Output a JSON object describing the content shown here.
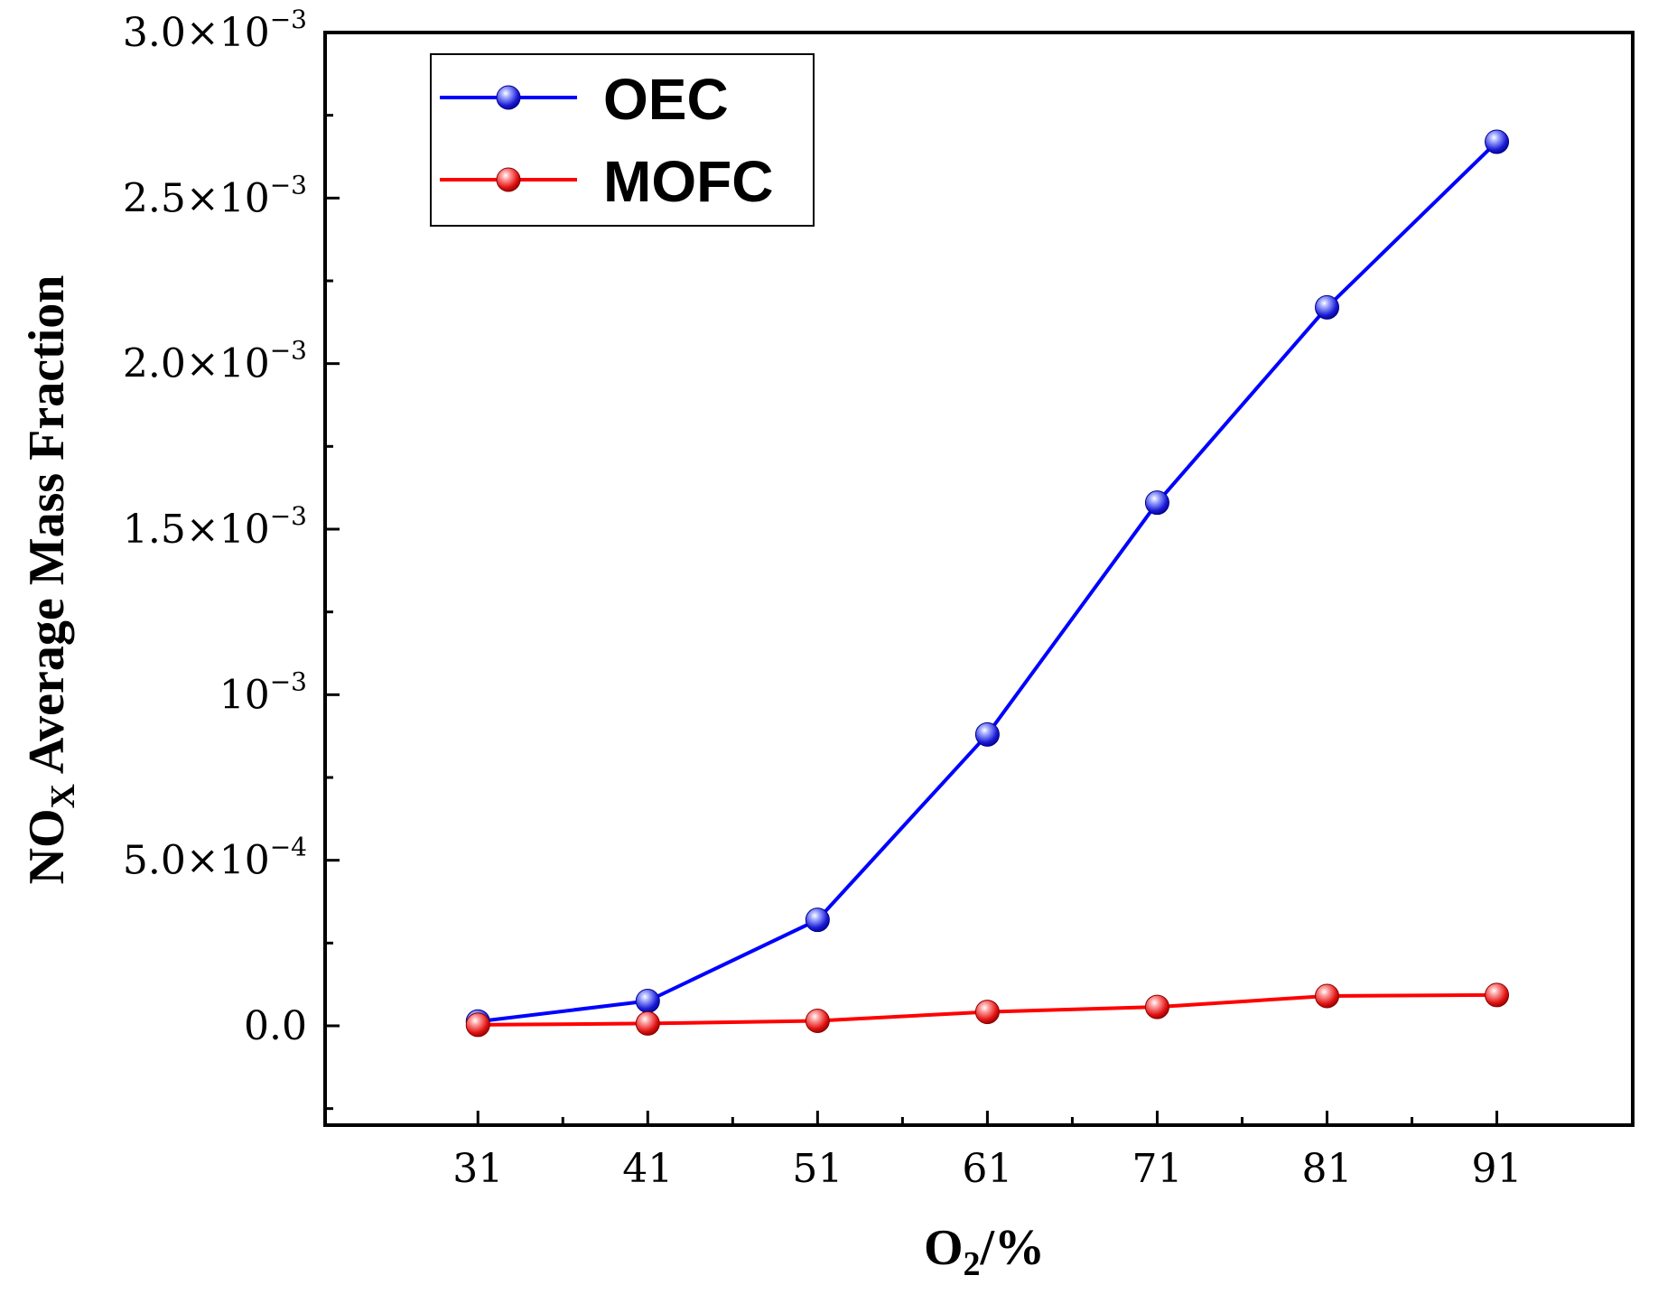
{
  "chart_data": {
    "type": "line",
    "title": "",
    "xlabel": {
      "main": "O",
      "sub": "2",
      "tail": "/%"
    },
    "ylabel": {
      "main": "NO",
      "sub": "X",
      "tail": " Average Mass Fraction"
    },
    "x": [
      31,
      41,
      51,
      61,
      71,
      81,
      91
    ],
    "xlim": [
      22,
      99
    ],
    "ylim": [
      -0.0003,
      0.003
    ],
    "xticks": [
      {
        "value": 31,
        "label": "31"
      },
      {
        "value": 41,
        "label": "41"
      },
      {
        "value": 51,
        "label": "51"
      },
      {
        "value": 61,
        "label": "61"
      },
      {
        "value": 71,
        "label": "71"
      },
      {
        "value": 81,
        "label": "81"
      },
      {
        "value": 91,
        "label": "91"
      }
    ],
    "yticks": [
      {
        "value": 0,
        "mant": "0.0",
        "exp": ""
      },
      {
        "value": 0.0005,
        "mant": "5.0×10",
        "exp": "−4"
      },
      {
        "value": 0.001,
        "mant": "10",
        "exp": "−3"
      },
      {
        "value": 0.0015,
        "mant": "1.5×10",
        "exp": "−3"
      },
      {
        "value": 0.002,
        "mant": "2.0×10",
        "exp": "−3"
      },
      {
        "value": 0.0025,
        "mant": "2.5×10",
        "exp": "−3"
      },
      {
        "value": 0.003,
        "mant": "3.0×10",
        "exp": "−3"
      }
    ],
    "legend_position": "top-left",
    "series": [
      {
        "name": "OEC",
        "color": "#0000ff",
        "values": [
          1.3e-05,
          7.5e-05,
          0.00032,
          0.00088,
          0.00158,
          0.00217,
          0.00267
        ]
      },
      {
        "name": "MOFC",
        "color": "#ff0000",
        "values": [
          3e-06,
          7e-06,
          1.5e-05,
          4.2e-05,
          5.7e-05,
          9e-05,
          9.3e-05
        ]
      }
    ]
  }
}
